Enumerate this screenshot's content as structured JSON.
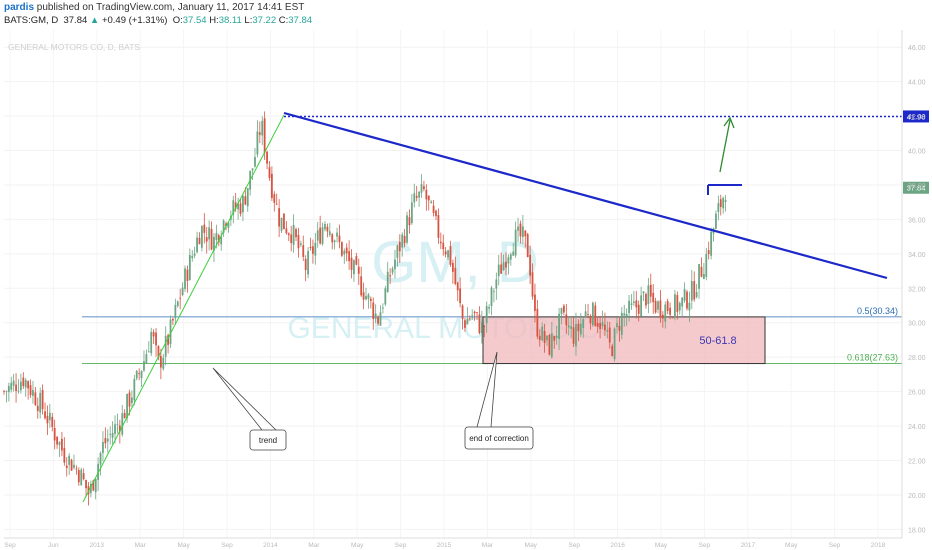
{
  "header": {
    "author": "pardis",
    "published": " published on TradingView.com, January 11, 2017 14:41 EST",
    "symbol": "BATS:GM, D",
    "last": "37.84",
    "change": "+0.49 (+1.31%)",
    "o_label": "O:",
    "o": "37.54",
    "h_label": "H:",
    "h": "38.11",
    "l_label": "L:",
    "l": "37.22",
    "c_label": "C:",
    "c": "37.84"
  },
  "chart_data": {
    "type": "candlestick",
    "legend_text": "GENERAL MOTORS CO, D, BATS",
    "watermark_symbol": "GM, D",
    "watermark_name": "GENERAL MOTORS CO",
    "ylim": [
      17.5,
      47
    ],
    "y_ticks": [
      "46.00",
      "44.00",
      "42.00",
      "40.00",
      "38.00",
      "36.00",
      "34.00",
      "32.00",
      "30.00",
      "28.00",
      "26.00",
      "24.00",
      "22.00",
      "20.00",
      "18.00"
    ],
    "y_tick_values": [
      46,
      44,
      42,
      40,
      38,
      36,
      34,
      32,
      30,
      28,
      26,
      24,
      22,
      20,
      18
    ],
    "x_ticks": [
      "Sep",
      "Jun",
      "2013",
      "Mar",
      "May",
      "Sep",
      "2014",
      "Mar",
      "May",
      "Sep",
      "2015",
      "Mar",
      "May",
      "Sep",
      "2016",
      "May",
      "Sep",
      "2017",
      "May",
      "Sep",
      "2018"
    ],
    "price_path": [
      [
        0,
        26.0
      ],
      [
        0.03,
        26.8
      ],
      [
        0.06,
        25.0
      ],
      [
        0.09,
        22.5
      ],
      [
        0.115,
        21.3
      ],
      [
        0.13,
        20.0
      ],
      [
        0.15,
        22.8
      ],
      [
        0.18,
        24.5
      ],
      [
        0.2,
        26.4
      ],
      [
        0.215,
        28.0
      ],
      [
        0.225,
        29.5
      ],
      [
        0.235,
        27.5
      ],
      [
        0.25,
        29.0
      ],
      [
        0.275,
        32.5
      ],
      [
        0.3,
        35.5
      ],
      [
        0.32,
        34.8
      ],
      [
        0.34,
        36.3
      ],
      [
        0.365,
        37.0
      ],
      [
        0.38,
        39.2
      ],
      [
        0.392,
        41.6
      ],
      [
        0.405,
        38.5
      ],
      [
        0.42,
        36.0
      ],
      [
        0.44,
        35.2
      ],
      [
        0.46,
        33.2
      ],
      [
        0.49,
        36.0
      ],
      [
        0.51,
        34.6
      ],
      [
        0.54,
        32.5
      ],
      [
        0.57,
        30.2
      ],
      [
        0.59,
        33.0
      ],
      [
        0.61,
        35.2
      ],
      [
        0.625,
        37.0
      ],
      [
        0.64,
        37.6
      ],
      [
        0.66,
        35.4
      ],
      [
        0.68,
        33.8
      ],
      [
        0.7,
        30.0
      ],
      [
        0.715,
        30.5
      ],
      [
        0.73,
        29.6
      ],
      [
        0.75,
        32.5
      ],
      [
        0.775,
        34.8
      ],
      [
        0.79,
        35.0
      ],
      [
        0.8,
        34.0
      ],
      [
        0.81,
        30.0
      ],
      [
        0.83,
        28.5
      ],
      [
        0.85,
        30.2
      ],
      [
        0.87,
        29.2
      ],
      [
        0.89,
        30.8
      ],
      [
        0.91,
        30.0
      ],
      [
        0.925,
        28.4
      ],
      [
        0.94,
        30.3
      ],
      [
        0.96,
        30.8
      ],
      [
        0.98,
        31.6
      ],
      [
        0.99,
        31.1
      ],
      [
        1.0,
        30.9
      ],
      [
        1.03,
        31.0
      ],
      [
        1.05,
        31.8
      ],
      [
        1.07,
        33.8
      ],
      [
        1.085,
        36.0
      ],
      [
        1.1,
        37.8
      ]
    ],
    "levels": [
      {
        "label": "0.5(30.34)",
        "value": 30.34,
        "color": "#2a6cb4"
      },
      {
        "label": "0.618(27.63)",
        "value": 27.63,
        "color": "#4caf50"
      }
    ],
    "resistance": {
      "value": 41.98,
      "label": "41.98"
    },
    "last_price": {
      "value": 37.84,
      "label": "37.84"
    },
    "zone": {
      "label": "50-61.8",
      "top": 30.34,
      "bottom": 27.63
    },
    "annotations": [
      {
        "text": "trend"
      },
      {
        "text": "end of correction"
      }
    ]
  }
}
